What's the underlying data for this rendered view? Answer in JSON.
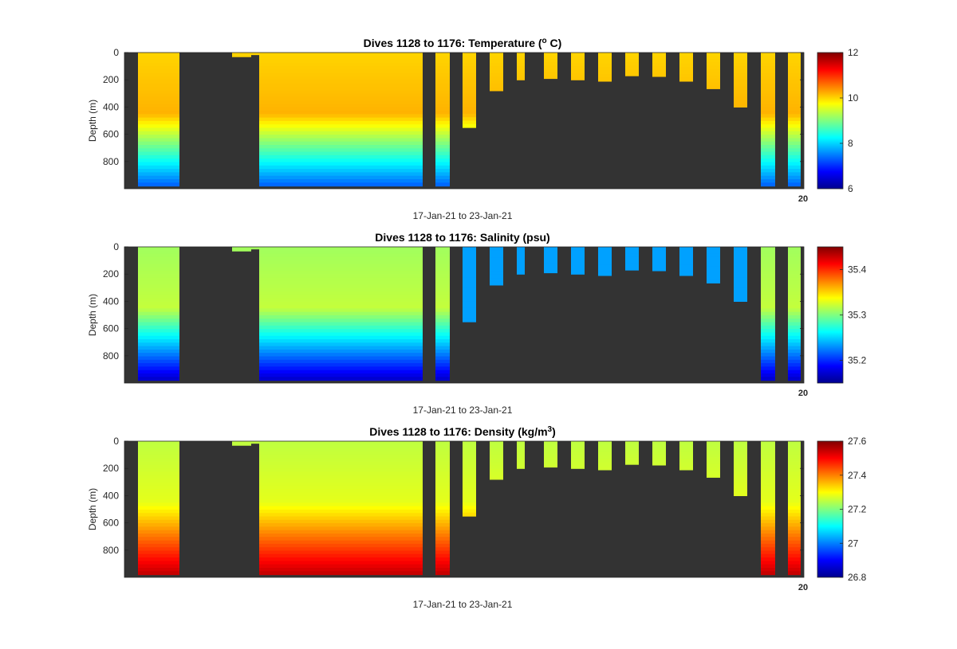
{
  "chart_data": [
    {
      "type": "heatmap",
      "title": "Dives 1128 to 1176: Temperature (",
      "title_sup": "o",
      "title_end": " C)",
      "xlabel": "17-Jan-21 to 23-Jan-21",
      "ylabel": "Depth (m)",
      "ylim": [
        0,
        1000
      ],
      "yticks": [
        "0",
        "200",
        "400",
        "600",
        "800"
      ],
      "xtick_overlap": "20",
      "colorbar": {
        "min": 6,
        "max": 12,
        "ticks": [
          "6",
          "8",
          "10",
          "12"
        ]
      },
      "profile_top": 10.0,
      "profile_mid": 10.2,
      "profile_bottom": 7.3,
      "gap_depths": [
        980,
        980,
        30,
        30,
        15,
        0,
        0,
        30,
        550,
        280,
        200,
        190,
        200,
        210,
        170,
        175,
        210,
        265,
        400,
        980,
        980
      ]
    },
    {
      "type": "heatmap",
      "title": "Dives 1128 to 1176: Salinity (psu)",
      "xlabel": "17-Jan-21 to 23-Jan-21",
      "ylabel": "Depth (m)",
      "ylim": [
        0,
        1000
      ],
      "yticks": [
        "0",
        "200",
        "400",
        "600",
        "800"
      ],
      "xtick_overlap": "20",
      "colorbar": {
        "min": 35.15,
        "max": 35.45,
        "ticks": [
          "35.2",
          "35.3",
          "35.4"
        ]
      },
      "profile_top": 35.31,
      "profile_mid": 35.32,
      "profile_bottom": 35.17
    },
    {
      "type": "heatmap",
      "title": "Dives 1128 to 1176: Density (kg/m",
      "title_sup": "3",
      "title_end": ")",
      "xlabel": "17-Jan-21 to 23-Jan-21",
      "ylabel": "Depth (m)",
      "ylim": [
        0,
        1000
      ],
      "yticks": [
        "0",
        "200",
        "400",
        "600",
        "800"
      ],
      "xtick_overlap": "20",
      "colorbar": {
        "min": 26.8,
        "max": 27.6,
        "ticks": [
          "26.8",
          "27",
          "27.2",
          "27.4",
          "27.6"
        ]
      },
      "profile_top": 27.25,
      "profile_mid": 27.28,
      "profile_bottom": 27.55
    }
  ],
  "colors": {
    "background": "#333333",
    "axis": "#262626",
    "colormap": "jet"
  }
}
